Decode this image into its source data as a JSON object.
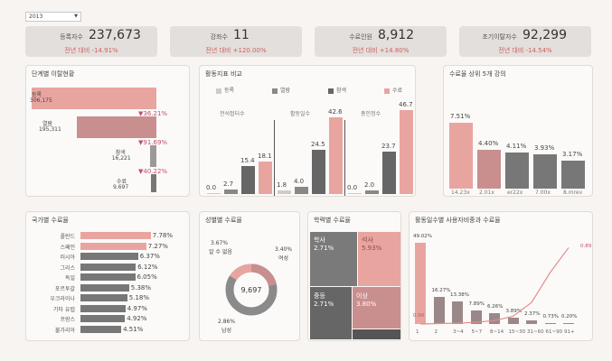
{
  "filter": {
    "year": "2013"
  },
  "kpis": [
    {
      "label": "등록자수",
      "value": "237,673",
      "delta": "전년 대비 -14.91%"
    },
    {
      "label": "강좌수",
      "value": "11",
      "delta": "전년 대비 +120.00%"
    },
    {
      "label": "수료인원",
      "value": "8,912",
      "delta": "전년 대비 +14.80%"
    },
    {
      "label": "초기이탈자수",
      "value": "92,299",
      "delta": "전년 대비 -14.54%"
    }
  ],
  "funnel": {
    "title": "단계별 이탈현황",
    "stages": [
      {
        "name": "등록",
        "value": "306,175",
        "v": 306175,
        "drop": ""
      },
      {
        "name": "열람",
        "value": "195,311",
        "v": 195311,
        "drop": "▼36.21%"
      },
      {
        "name": "참색",
        "value": "16,221",
        "v": 16221,
        "drop": "▼91.69%"
      },
      {
        "name": "수료",
        "value": "9,697",
        "v": 9697,
        "drop": "▼40.22%"
      }
    ]
  },
  "activity": {
    "title": "활동지표 비교",
    "legend": [
      "등록",
      "열람",
      "참색",
      "수료"
    ],
    "groups": [
      {
        "name": "전석접터수",
        "values": [
          0.0,
          2.7,
          15.4,
          18.1
        ]
      },
      {
        "name": "활동일수",
        "values": [
          1.8,
          4.0,
          24.5,
          42.6
        ]
      },
      {
        "name": "총인정수",
        "values": [
          0.0,
          2.0,
          23.7,
          46.7
        ]
      }
    ]
  },
  "top5": {
    "title": "수료율 상위 5개 강의",
    "bars": [
      {
        "label": "14.23x",
        "value": "7.51%",
        "v": 7.51
      },
      {
        "label": "2.01x",
        "value": "4.40%",
        "v": 4.4
      },
      {
        "label": "er22x",
        "value": "4.11%",
        "v": 4.11
      },
      {
        "label": "7.00x",
        "value": "3.93%",
        "v": 3.93
      },
      {
        "label": "8.mrev",
        "value": "3.17%",
        "v": 3.17
      }
    ]
  },
  "country": {
    "title": "국가별 수료율",
    "items": [
      {
        "name": "폴란드",
        "value": "7.78%",
        "v": 7.78
      },
      {
        "name": "스페인",
        "value": "7.27%",
        "v": 7.27
      },
      {
        "name": "러시아",
        "value": "6.37%",
        "v": 6.37
      },
      {
        "name": "그리스",
        "value": "6.12%",
        "v": 6.12
      },
      {
        "name": "독일",
        "value": "6.05%",
        "v": 6.05
      },
      {
        "name": "포르투갈",
        "value": "5.38%",
        "v": 5.38
      },
      {
        "name": "우크라이나",
        "value": "5.18%",
        "v": 5.18
      },
      {
        "name": "기타 유럽",
        "value": "4.97%",
        "v": 4.97
      },
      {
        "name": "프랑스",
        "value": "4.92%",
        "v": 4.92
      },
      {
        "name": "불가리아",
        "value": "4.51%",
        "v": 4.51
      }
    ]
  },
  "gender": {
    "title": "성별별 수료율",
    "center": "9,697",
    "slices": [
      {
        "name": "여성",
        "value": "3.40%",
        "v": 3.4
      },
      {
        "name": "남성",
        "value": "2.86%",
        "v": 2.86
      },
      {
        "name": "알 수 없음",
        "value": "3.67%",
        "v": 3.67
      }
    ]
  },
  "education": {
    "title": "학력별 수료율",
    "cells": [
      {
        "name": "학사",
        "value": "2.71%"
      },
      {
        "name": "석사",
        "value": "5.93%"
      },
      {
        "name": "중등",
        "value": "2.71%"
      },
      {
        "name": "이상",
        "value": "3.80%"
      }
    ]
  },
  "dayschart": {
    "title": "활동일수별 사용자비중과 수료율",
    "categories": [
      "1",
      "2",
      "3~4",
      "5~7",
      "8~14",
      "15~30",
      "31~60",
      "61~90",
      "91+"
    ],
    "share_labels": [
      "49.02%",
      "16.27%",
      "13.38%",
      "7.89%",
      "6.26%",
      "3.89%",
      "2.37%",
      "0.73%",
      "0.20%"
    ],
    "share": [
      49.02,
      16.27,
      13.38,
      7.89,
      6.26,
      3.89,
      2.37,
      0.73,
      0.2
    ],
    "rate": [
      0.0,
      0.005,
      0.01,
      0.02,
      0.04,
      0.09,
      0.25,
      0.6,
      0.89
    ],
    "rate_start": "0.00",
    "rate_end": "0.89"
  },
  "colors": {
    "pink": "#e8a5a0",
    "rose": "#c98e8e",
    "gray": "#777777",
    "dark": "#555555",
    "light": "#cccccc"
  }
}
